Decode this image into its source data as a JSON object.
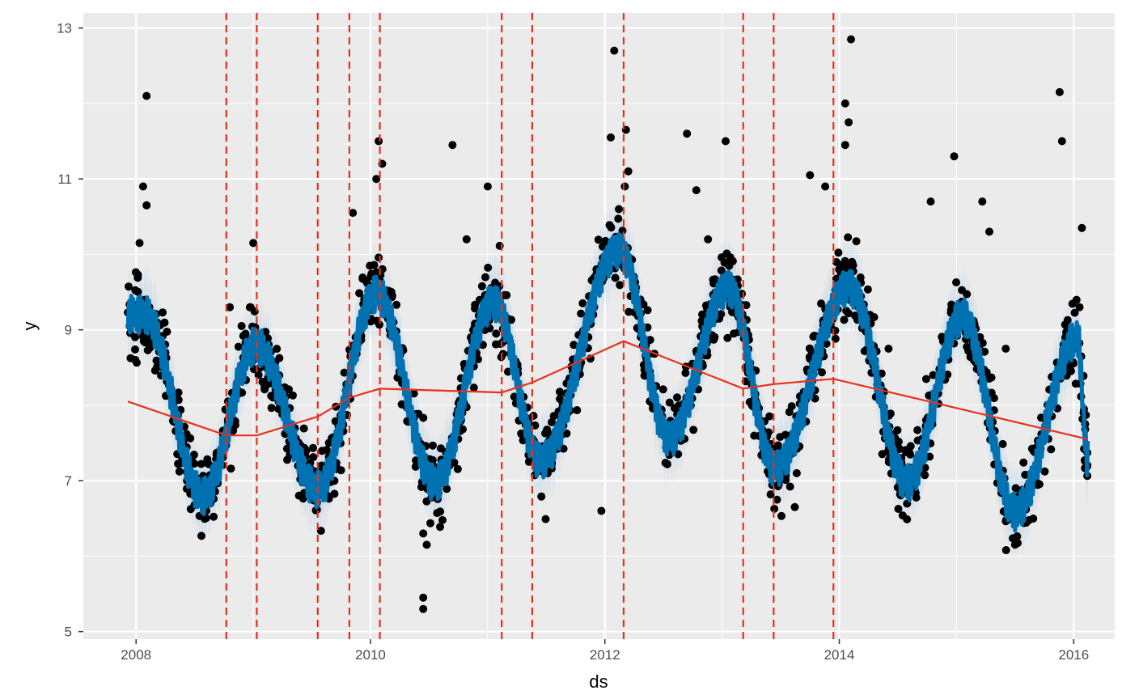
{
  "chart_data": {
    "type": "line",
    "xlabel": "ds",
    "ylabel": "y",
    "xlim": [
      2007.55,
      2016.35
    ],
    "ylim": [
      4.9,
      13.2
    ],
    "x_ticks": [
      2008,
      2010,
      2012,
      2014,
      2016
    ],
    "x_tick_labels": [
      "2008",
      "2010",
      "2012",
      "2014",
      "2016"
    ],
    "y_ticks": [
      5,
      7,
      9,
      11,
      13
    ],
    "y_tick_labels": [
      "5",
      "7",
      "9",
      "11",
      "13"
    ],
    "grid": true,
    "background": "#ebebeb",
    "changepoints": [
      2008.77,
      2009.03,
      2009.55,
      2009.82,
      2010.08,
      2011.12,
      2011.38,
      2012.16,
      2013.18,
      2013.44,
      2013.95
    ],
    "trend": {
      "x": [
        2007.93,
        2008.77,
        2009.03,
        2009.55,
        2009.82,
        2010.08,
        2011.12,
        2011.38,
        2012.16,
        2013.18,
        2013.44,
        2013.95,
        2016.12
      ],
      "y": [
        8.05,
        7.6,
        7.6,
        7.85,
        8.1,
        8.22,
        8.17,
        8.3,
        8.85,
        8.22,
        8.28,
        8.35,
        7.55
      ]
    },
    "forecast": {
      "season_peaks": [
        [
          2008.07,
          9.2
        ],
        [
          2008.57,
          6.8
        ],
        [
          2009.02,
          8.8
        ],
        [
          2009.55,
          6.9
        ],
        [
          2010.05,
          9.5
        ],
        [
          2010.55,
          7.0
        ],
        [
          2011.05,
          9.4
        ],
        [
          2011.45,
          7.3
        ],
        [
          2012.12,
          10.1
        ],
        [
          2012.55,
          7.6
        ],
        [
          2013.05,
          9.6
        ],
        [
          2013.45,
          7.2
        ],
        [
          2014.08,
          9.6
        ],
        [
          2014.58,
          7.0
        ],
        [
          2015.05,
          9.2
        ],
        [
          2015.5,
          6.6
        ],
        [
          2016.03,
          8.9
        ],
        [
          2016.12,
          7.3
        ]
      ],
      "uncertainty": 0.45
    },
    "observed_outliers": [
      [
        2008.09,
        12.1
      ],
      [
        2008.06,
        10.9
      ],
      [
        2008.09,
        10.65
      ],
      [
        2008.03,
        10.15
      ],
      [
        2008.8,
        9.3
      ],
      [
        2009.0,
        10.15
      ],
      [
        2008.9,
        9.05
      ],
      [
        2008.25,
        8.7
      ],
      [
        2009.85,
        10.55
      ],
      [
        2010.07,
        11.5
      ],
      [
        2010.1,
        11.2
      ],
      [
        2010.05,
        11.0
      ],
      [
        2010.45,
        5.45
      ],
      [
        2010.45,
        5.3
      ],
      [
        2010.45,
        6.3
      ],
      [
        2010.48,
        6.15
      ],
      [
        2010.7,
        11.45
      ],
      [
        2010.82,
        10.2
      ],
      [
        2011.0,
        10.9
      ],
      [
        2011.97,
        6.6
      ],
      [
        2012.08,
        12.7
      ],
      [
        2012.05,
        11.55
      ],
      [
        2012.18,
        11.65
      ],
      [
        2012.2,
        11.1
      ],
      [
        2012.17,
        10.9
      ],
      [
        2012.7,
        11.6
      ],
      [
        2012.78,
        10.85
      ],
      [
        2013.03,
        11.5
      ],
      [
        2012.88,
        10.2
      ],
      [
        2013.1,
        8.95
      ],
      [
        2013.62,
        6.65
      ],
      [
        2013.88,
        10.9
      ],
      [
        2013.75,
        11.05
      ],
      [
        2014.05,
        12.0
      ],
      [
        2014.1,
        12.85
      ],
      [
        2014.08,
        11.75
      ],
      [
        2014.05,
        11.45
      ],
      [
        2014.78,
        10.7
      ],
      [
        2014.98,
        11.3
      ],
      [
        2015.22,
        10.7
      ],
      [
        2015.28,
        10.3
      ],
      [
        2015.88,
        12.15
      ],
      [
        2015.9,
        11.5
      ],
      [
        2016.07,
        10.35
      ],
      [
        2016.05,
        9.3
      ],
      [
        2015.42,
        8.75
      ],
      [
        2014.42,
        8.75
      ],
      [
        2013.2,
        8.5
      ]
    ],
    "colors": {
      "observed": "#000000",
      "forecast": "#0072b2",
      "uncertainty": "#bcd3e8",
      "trend": "#e8301c",
      "changepoint": "#e8301c",
      "grid": "#ffffff",
      "tick_text": "#4d4d4d"
    }
  }
}
